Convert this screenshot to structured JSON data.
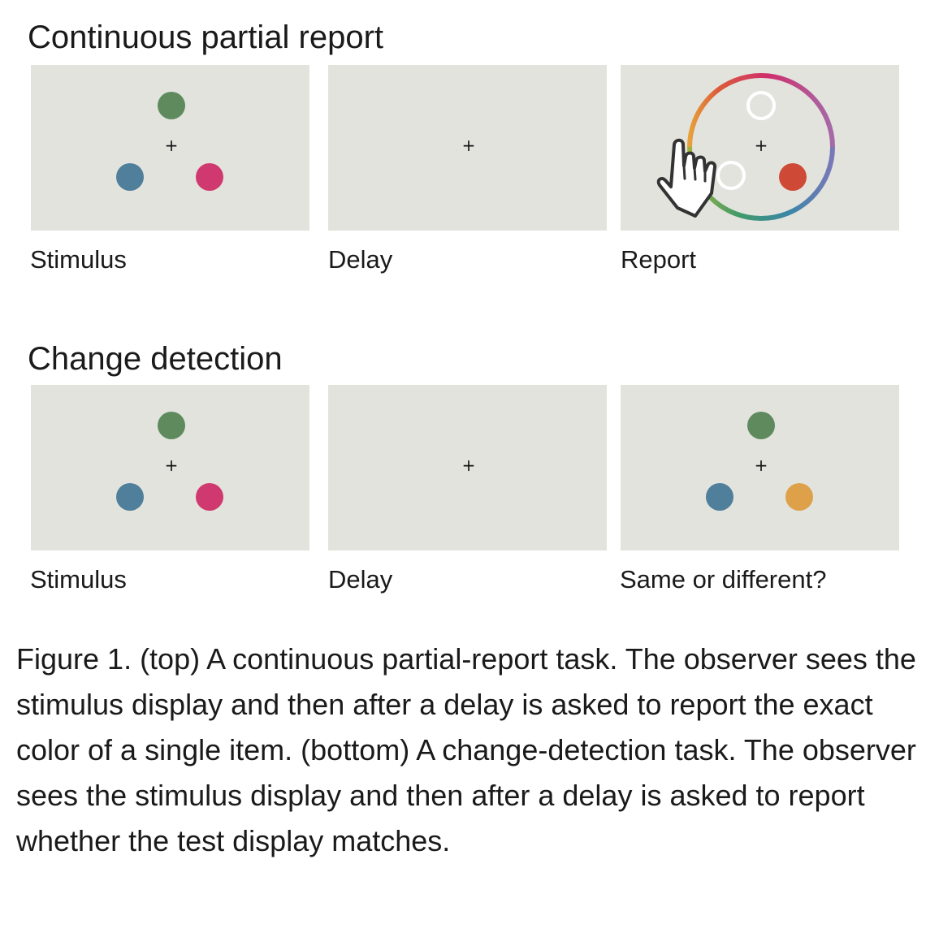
{
  "sections": [
    {
      "title": "Continuous partial report",
      "panels": [
        {
          "label": "Stimulus"
        },
        {
          "label": "Delay"
        },
        {
          "label": "Report"
        }
      ]
    },
    {
      "title": "Change detection",
      "panels": [
        {
          "label": "Stimulus"
        },
        {
          "label": "Delay"
        },
        {
          "label": "Same or different?"
        }
      ]
    }
  ],
  "fixation": "+",
  "colors": {
    "panel_bg": "#e3e3de",
    "green": "#5e8a5e",
    "blue": "#4f7f9b",
    "magenta": "#d0396f",
    "red": "#cf4a36",
    "orange": "#dea14a"
  },
  "caption": "Figure 1. (top) A continuous partial-report task. The observer sees the stimulus display and then after a delay is asked to report the exact color of a single item. (bottom) A change-detection task. The observer sees the stimulus display and then after a delay is asked to report whether the test display matches."
}
